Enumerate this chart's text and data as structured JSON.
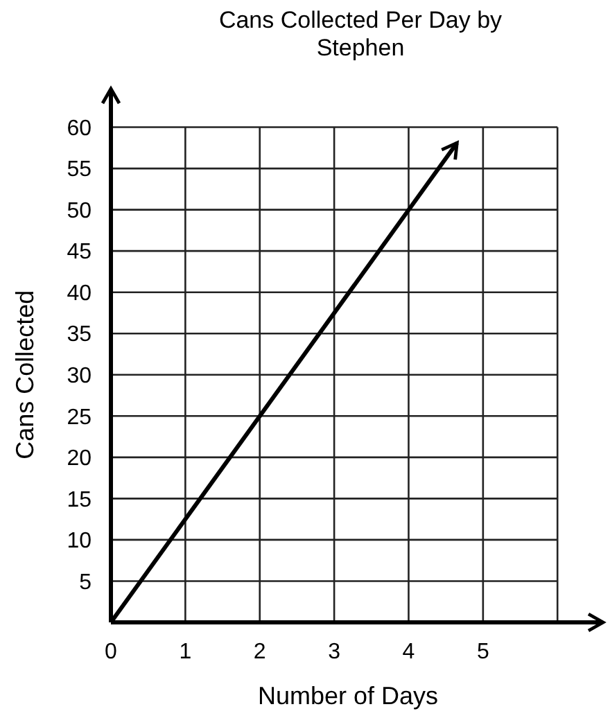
{
  "chart_data": {
    "type": "line",
    "title": "Cans Collected Per Day by Stephen",
    "xlabel": "Number of Days",
    "ylabel": "Cans Collected",
    "x": [
      0,
      4.65
    ],
    "series": [
      {
        "color": "#000000",
        "values": [
          0,
          58.1
        ]
      }
    ],
    "xlim": [
      0,
      6.65
    ],
    "ylim": [
      0,
      65
    ],
    "xticks": [
      0,
      1,
      2,
      3,
      4,
      5,
      {
        "value": 6,
        "label": null
      }
    ],
    "yticks": [
      5,
      10,
      15,
      20,
      25,
      30,
      35,
      40,
      45,
      50,
      55,
      60
    ],
    "grid": true,
    "marker": "none",
    "line_style": "solid"
  }
}
